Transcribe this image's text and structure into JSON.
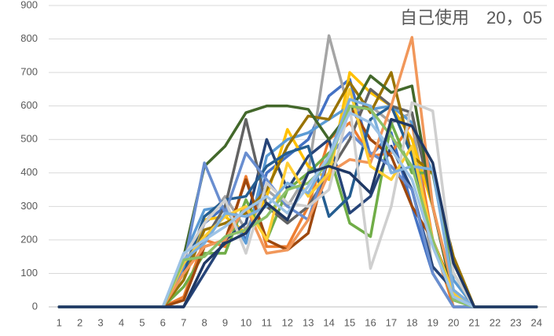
{
  "chart_data": {
    "type": "line",
    "title": "自己使用　20，05",
    "categories": [
      "1",
      "2",
      "3",
      "4",
      "5",
      "6",
      "7",
      "8",
      "9",
      "10",
      "11",
      "12",
      "13",
      "14",
      "15",
      "16",
      "17",
      "18",
      "19",
      "20",
      "21",
      "22",
      "23",
      "24"
    ],
    "ylim": [
      0,
      900
    ],
    "yticks": [
      0,
      100,
      200,
      300,
      400,
      500,
      600,
      700,
      800,
      900
    ],
    "grid": true,
    "series": [
      {
        "color": "#4472c4",
        "values": [
          0,
          0,
          0,
          0,
          0,
          0,
          100,
          250,
          300,
          200,
          400,
          450,
          500,
          630,
          680,
          450,
          520,
          300,
          100,
          0,
          0,
          0,
          0,
          0
        ]
      },
      {
        "color": "#ed7d31",
        "values": [
          0,
          0,
          0,
          0,
          0,
          0,
          30,
          200,
          180,
          390,
          180,
          180,
          300,
          500,
          550,
          450,
          460,
          550,
          200,
          0,
          0,
          0,
          0,
          0
        ]
      },
      {
        "color": "#a5a5a5",
        "values": [
          0,
          0,
          0,
          0,
          0,
          0,
          120,
          250,
          330,
          230,
          350,
          300,
          400,
          810,
          580,
          600,
          550,
          580,
          100,
          0,
          0,
          0,
          0,
          0
        ]
      },
      {
        "color": "#ffc000",
        "values": [
          0,
          0,
          0,
          0,
          0,
          0,
          100,
          260,
          270,
          220,
          330,
          530,
          420,
          380,
          700,
          640,
          600,
          500,
          300,
          50,
          0,
          0,
          0,
          0
        ]
      },
      {
        "color": "#5b9bd5",
        "values": [
          0,
          0,
          0,
          0,
          0,
          0,
          150,
          290,
          300,
          190,
          450,
          500,
          520,
          560,
          600,
          590,
          600,
          550,
          400,
          80,
          0,
          0,
          0,
          0
        ]
      },
      {
        "color": "#70ad47",
        "values": [
          0,
          0,
          0,
          0,
          0,
          0,
          60,
          160,
          160,
          320,
          200,
          350,
          400,
          460,
          250,
          210,
          550,
          400,
          400,
          100,
          0,
          0,
          0,
          0
        ]
      },
      {
        "color": "#264478",
        "values": [
          0,
          0,
          0,
          0,
          0,
          0,
          0,
          100,
          200,
          250,
          500,
          350,
          450,
          500,
          280,
          330,
          480,
          350,
          120,
          50,
          0,
          0,
          0,
          0
        ]
      },
      {
        "color": "#9e480e",
        "values": [
          0,
          0,
          0,
          0,
          0,
          0,
          20,
          180,
          200,
          380,
          200,
          170,
          220,
          450,
          600,
          500,
          450,
          300,
          200,
          50,
          0,
          0,
          0,
          0
        ]
      },
      {
        "color": "#636363",
        "values": [
          0,
          0,
          0,
          0,
          0,
          0,
          130,
          200,
          300,
          560,
          300,
          250,
          300,
          400,
          500,
          650,
          600,
          580,
          300,
          30,
          0,
          0,
          0,
          0
        ]
      },
      {
        "color": "#997300",
        "values": [
          0,
          0,
          0,
          0,
          0,
          0,
          80,
          230,
          250,
          280,
          350,
          480,
          570,
          560,
          670,
          580,
          700,
          450,
          400,
          150,
          0,
          0,
          0,
          0
        ]
      },
      {
        "color": "#255e91",
        "values": [
          0,
          0,
          0,
          0,
          0,
          0,
          100,
          270,
          320,
          330,
          420,
          460,
          480,
          270,
          330,
          560,
          600,
          450,
          200,
          20,
          0,
          0,
          0,
          0
        ]
      },
      {
        "color": "#43682b",
        "values": [
          0,
          0,
          0,
          0,
          0,
          0,
          150,
          420,
          480,
          580,
          600,
          600,
          590,
          500,
          580,
          690,
          640,
          660,
          300,
          30,
          0,
          0,
          0,
          0
        ]
      },
      {
        "color": "#698ed0",
        "values": [
          0,
          0,
          0,
          0,
          0,
          0,
          120,
          430,
          280,
          460,
          380,
          300,
          260,
          450,
          520,
          460,
          420,
          350,
          100,
          0,
          0,
          0,
          0,
          0
        ]
      },
      {
        "color": "#f1975a",
        "values": [
          0,
          0,
          0,
          0,
          0,
          0,
          100,
          180,
          200,
          300,
          160,
          170,
          260,
          400,
          440,
          430,
          600,
          805,
          300,
          50,
          0,
          0,
          0,
          0
        ]
      },
      {
        "color": "#cfcfcf",
        "values": [
          0,
          0,
          0,
          0,
          0,
          0,
          150,
          250,
          320,
          160,
          370,
          310,
          300,
          350,
          600,
          115,
          300,
          610,
          585,
          100,
          0,
          0,
          0,
          0
        ]
      },
      {
        "color": "#ffcd33",
        "values": [
          0,
          0,
          0,
          0,
          0,
          0,
          130,
          210,
          270,
          300,
          200,
          430,
          330,
          400,
          650,
          420,
          380,
          480,
          200,
          40,
          0,
          0,
          0,
          0
        ]
      },
      {
        "color": "#7cafdd",
        "values": [
          0,
          0,
          0,
          0,
          0,
          0,
          140,
          190,
          280,
          270,
          300,
          370,
          340,
          450,
          620,
          600,
          400,
          420,
          410,
          50,
          0,
          0,
          0,
          0
        ]
      },
      {
        "color": "#8cc168",
        "values": [
          0,
          0,
          0,
          0,
          0,
          0,
          140,
          150,
          210,
          230,
          270,
          350,
          370,
          430,
          600,
          590,
          510,
          420,
          200,
          20,
          0,
          0,
          0,
          0
        ]
      },
      {
        "color": "#9dc3e6",
        "values": [
          0,
          0,
          0,
          0,
          0,
          0,
          160,
          200,
          240,
          290,
          330,
          280,
          360,
          450,
          580,
          550,
          470,
          380,
          180,
          30,
          0,
          0,
          0,
          0
        ]
      },
      {
        "color": "#1f3864",
        "values": [
          0,
          0,
          0,
          0,
          0,
          0,
          0,
          130,
          190,
          220,
          310,
          260,
          400,
          420,
          400,
          340,
          560,
          540,
          430,
          130,
          0,
          0,
          0,
          0
        ]
      }
    ]
  }
}
